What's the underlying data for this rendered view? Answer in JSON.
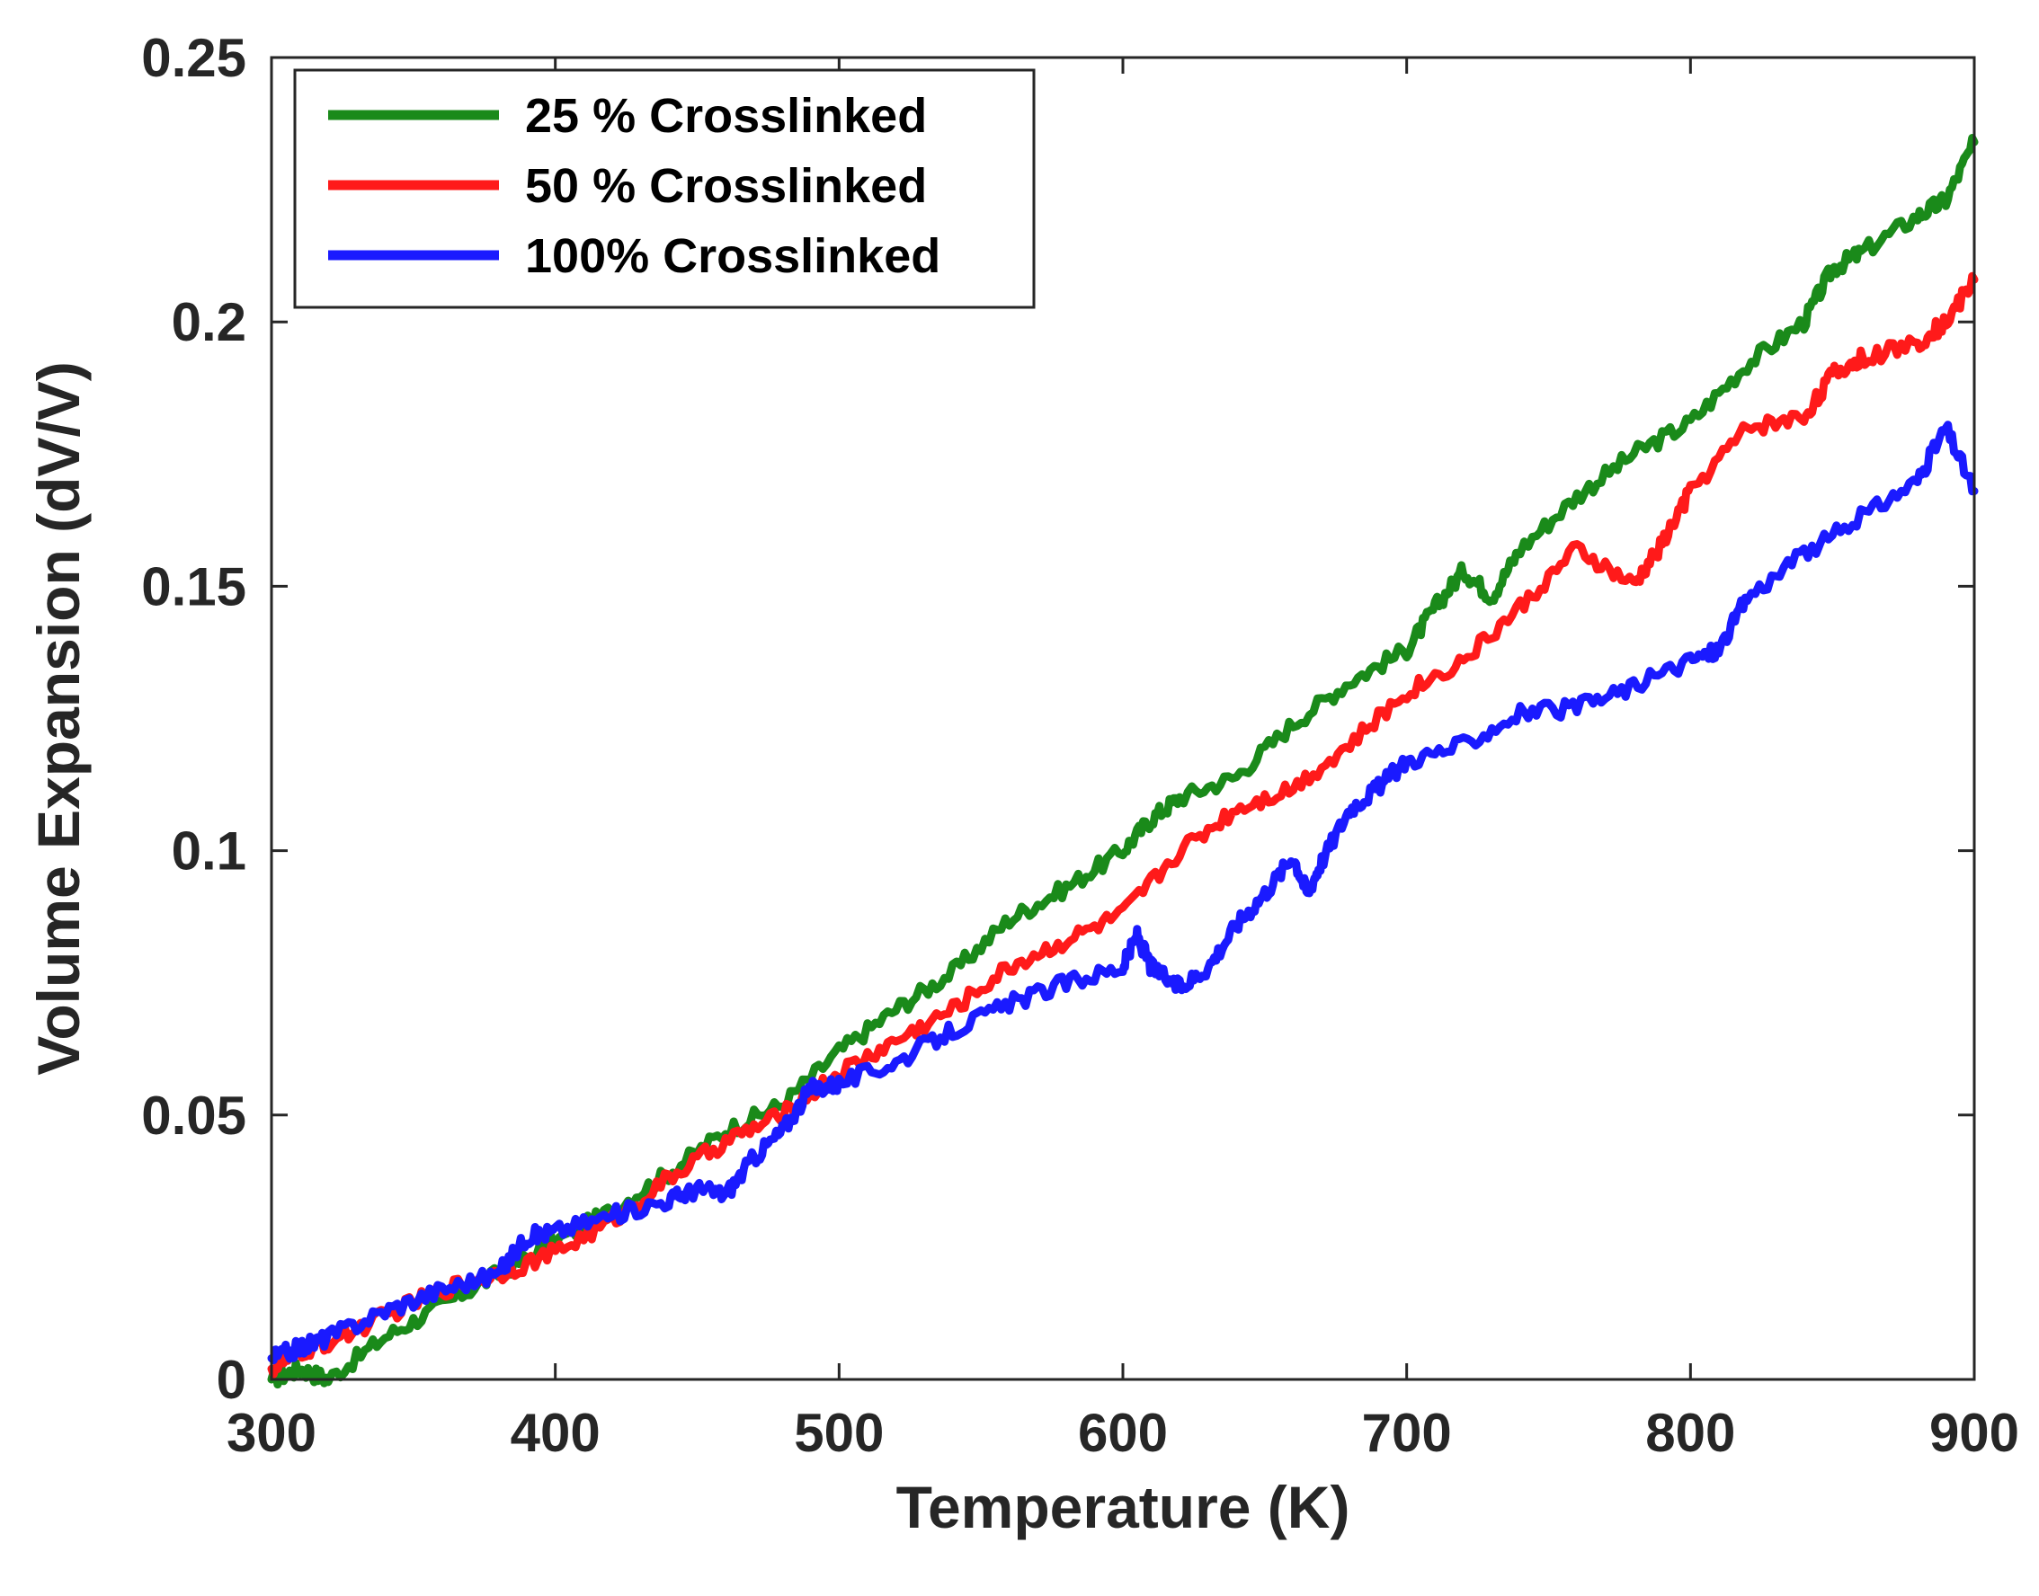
{
  "chart_data": {
    "type": "line",
    "title": "",
    "xlabel": "Temperature (K)",
    "ylabel": "Volume Expansion (dV/V)",
    "xlim": [
      300,
      900
    ],
    "ylim": [
      0,
      0.25
    ],
    "xticks": [
      300,
      400,
      500,
      600,
      700,
      800,
      900
    ],
    "xtick_labels": [
      "300",
      "400",
      "500",
      "600",
      "700",
      "800",
      "900"
    ],
    "yticks": [
      0,
      0.05,
      0.1,
      0.15,
      0.2,
      0.25
    ],
    "ytick_labels": [
      "0",
      "0.05",
      "0.1",
      "0.15",
      "0.2",
      "0.25"
    ],
    "grid": false,
    "legend_position": "top-left",
    "series": [
      {
        "name": "25 % Crosslinked",
        "color": "#1a8a1a",
        "x": [
          300,
          310,
          320,
          340,
          360,
          380,
          400,
          420,
          440,
          460,
          480,
          500,
          520,
          540,
          560,
          580,
          600,
          610,
          620,
          640,
          660,
          680,
          700,
          710,
          720,
          730,
          740,
          760,
          780,
          800,
          820,
          840,
          850,
          860,
          880,
          890,
          900
        ],
        "values": [
          0.0,
          0.002,
          0.0,
          0.008,
          0.014,
          0.02,
          0.026,
          0.032,
          0.039,
          0.047,
          0.052,
          0.062,
          0.07,
          0.077,
          0.087,
          0.093,
          0.1,
          0.106,
          0.11,
          0.114,
          0.124,
          0.132,
          0.138,
          0.146,
          0.153,
          0.148,
          0.157,
          0.167,
          0.175,
          0.181,
          0.192,
          0.2,
          0.21,
          0.213,
          0.22,
          0.223,
          0.234
        ]
      },
      {
        "name": "50 % Crosslinked",
        "color": "#ff1a1a",
        "x": [
          300,
          310,
          320,
          340,
          360,
          380,
          400,
          420,
          440,
          460,
          480,
          500,
          520,
          540,
          560,
          580,
          600,
          620,
          640,
          660,
          680,
          700,
          720,
          740,
          760,
          780,
          790,
          800,
          820,
          840,
          850,
          860,
          880,
          890,
          900
        ],
        "values": [
          0.002,
          0.005,
          0.007,
          0.012,
          0.017,
          0.02,
          0.024,
          0.03,
          0.038,
          0.045,
          0.05,
          0.058,
          0.064,
          0.07,
          0.078,
          0.083,
          0.088,
          0.1,
          0.108,
          0.112,
          0.12,
          0.13,
          0.136,
          0.146,
          0.157,
          0.15,
          0.158,
          0.168,
          0.18,
          0.182,
          0.19,
          0.193,
          0.196,
          0.2,
          0.208
        ]
      },
      {
        "name": "100% Crosslinked",
        "color": "#1a1aff",
        "x": [
          300,
          310,
          320,
          340,
          360,
          380,
          390,
          400,
          420,
          440,
          450,
          460,
          470,
          480,
          490,
          500,
          520,
          540,
          560,
          580,
          600,
          605,
          610,
          620,
          630,
          640,
          650,
          660,
          665,
          670,
          680,
          690,
          700,
          720,
          740,
          760,
          780,
          800,
          810,
          820,
          840,
          860,
          880,
          890,
          900
        ],
        "values": [
          0.004,
          0.006,
          0.008,
          0.013,
          0.017,
          0.02,
          0.027,
          0.028,
          0.031,
          0.034,
          0.036,
          0.035,
          0.042,
          0.047,
          0.055,
          0.056,
          0.06,
          0.066,
          0.071,
          0.075,
          0.078,
          0.084,
          0.078,
          0.074,
          0.078,
          0.086,
          0.092,
          0.099,
          0.092,
          0.098,
          0.108,
          0.112,
          0.117,
          0.12,
          0.126,
          0.127,
          0.131,
          0.136,
          0.138,
          0.148,
          0.156,
          0.163,
          0.17,
          0.18,
          0.168
        ]
      }
    ]
  }
}
